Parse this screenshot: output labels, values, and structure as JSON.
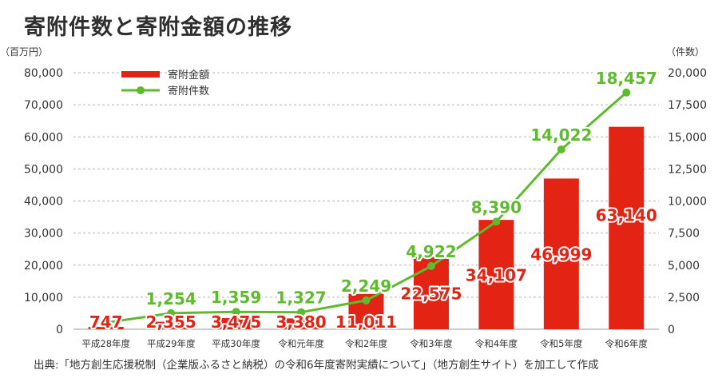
{
  "title": "寄附件数と寄附金額の推移",
  "source": "出典:「地方創生応援税制（企業版ふるさと納税）の令和6年度寄附実績について」（地方創生サイト）を加工して作成",
  "chart_data": {
    "type": "bar",
    "categories": [
      "平成28年度",
      "平成29年度",
      "平成30年度",
      "令和元年度",
      "令和2年度",
      "令和3年度",
      "令和4年度",
      "令和5年度",
      "令和6年度"
    ],
    "left_axis_unit": "（百万円）",
    "right_axis_unit": "（件数）",
    "y_left": {
      "min": 0,
      "max": 80000,
      "ticks": [
        "0",
        "10,000",
        "20,000",
        "30,000",
        "40,000",
        "50,000",
        "60,000",
        "70,000",
        "80,000"
      ]
    },
    "y_right": {
      "min": 0,
      "max": 20000,
      "ticks": [
        "0",
        "2,500",
        "5,000",
        "7,500",
        "10,000",
        "12,500",
        "15,000",
        "17,500",
        "20,000"
      ]
    },
    "series": [
      {
        "name": "寄附金額",
        "kind": "bar",
        "axis": "left",
        "color": "#e32313",
        "values": [
          747,
          2355,
          3475,
          3380,
          11011,
          22575,
          34107,
          46999,
          63140
        ],
        "labels": [
          "747",
          "2,355",
          "3,475",
          "3,380",
          "11,011",
          "22,575",
          "34,107",
          "46,999",
          "63,140"
        ]
      },
      {
        "name": "寄附件数",
        "kind": "line",
        "axis": "right",
        "color": "#5dbb2d",
        "values": [
          517,
          1254,
          1359,
          1327,
          2249,
          4922,
          8390,
          14022,
          18457
        ],
        "labels": [
          "",
          "1,254",
          "1,359",
          "1,327",
          "2,249",
          "4,922",
          "8,390",
          "14,022",
          "18,457"
        ]
      }
    ],
    "gridlines": true,
    "legend_position": "top-left"
  }
}
